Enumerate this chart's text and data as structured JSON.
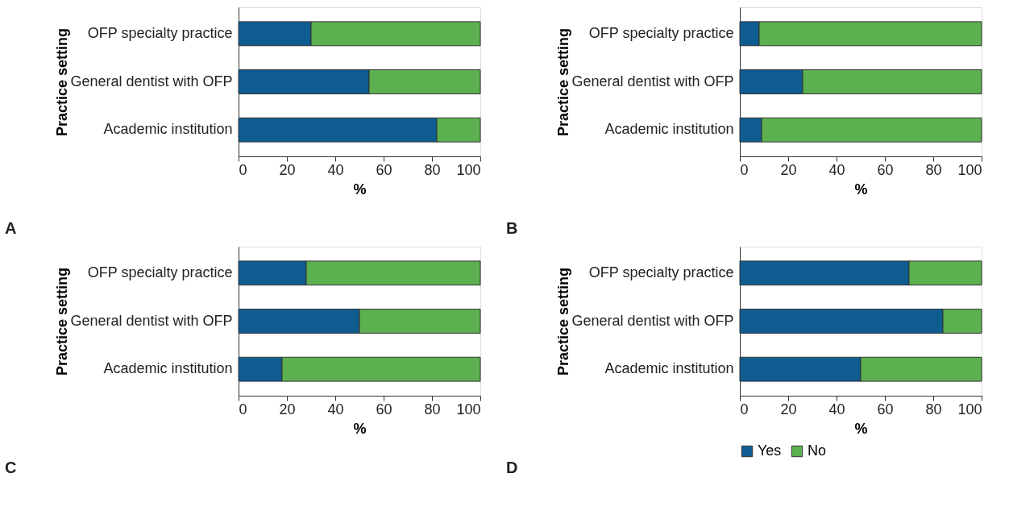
{
  "chart_data": [
    {
      "type": "bar",
      "orientation": "horizontal",
      "stacked": true,
      "categories": [
        "OFP specialty practice",
        "General dentist with OFP",
        "Academic institution"
      ],
      "series": [
        {
          "color": "#0f5c91",
          "values": [
            30,
            54,
            82
          ]
        },
        {
          "color": "#5cb050",
          "values": [
            70,
            46,
            18
          ]
        }
      ],
      "xlabel": "%",
      "ylabel": "Practice setting",
      "xlim": [
        0,
        100
      ],
      "xticks": [
        0,
        20,
        40,
        60,
        80,
        100
      ],
      "grid": false,
      "legend": false,
      "annotations": [
        "A"
      ]
    },
    {
      "type": "bar",
      "orientation": "horizontal",
      "stacked": true,
      "categories": [
        "OFP specialty practice",
        "General dentist with OFP",
        "Academic institution"
      ],
      "series": [
        {
          "color": "#0f5c91",
          "values": [
            8,
            26,
            9
          ]
        },
        {
          "color": "#5cb050",
          "values": [
            92,
            74,
            91
          ]
        }
      ],
      "xlabel": "%",
      "ylabel": "Practice setting",
      "xlim": [
        0,
        100
      ],
      "xticks": [
        0,
        20,
        40,
        60,
        80,
        100
      ],
      "grid": false,
      "legend": false,
      "annotations": [
        "B"
      ]
    },
    {
      "type": "bar",
      "orientation": "horizontal",
      "stacked": true,
      "categories": [
        "OFP specialty practice",
        "General dentist with OFP",
        "Academic institution"
      ],
      "series": [
        {
          "color": "#0f5c91",
          "values": [
            28,
            50,
            18
          ]
        },
        {
          "color": "#5cb050",
          "values": [
            72,
            50,
            82
          ]
        }
      ],
      "xlabel": "%",
      "ylabel": "Practice setting",
      "xlim": [
        0,
        100
      ],
      "xticks": [
        0,
        20,
        40,
        60,
        80,
        100
      ],
      "grid": false,
      "legend": false,
      "annotations": [
        "C"
      ]
    },
    {
      "type": "bar",
      "orientation": "horizontal",
      "stacked": true,
      "categories": [
        "OFP specialty practice",
        "General dentist with OFP",
        "Academic institution"
      ],
      "series": [
        {
          "name": "Yes",
          "color": "#0f5c91",
          "values": [
            70,
            84,
            50
          ]
        },
        {
          "name": "No",
          "color": "#5cb050",
          "values": [
            30,
            16,
            50
          ]
        }
      ],
      "xlabel": "%",
      "ylabel": "Practice setting",
      "xlim": [
        0,
        100
      ],
      "xticks": [
        0,
        20,
        40,
        60,
        80,
        100
      ],
      "grid": false,
      "legend": "bottom",
      "annotations": [
        "D"
      ]
    }
  ]
}
